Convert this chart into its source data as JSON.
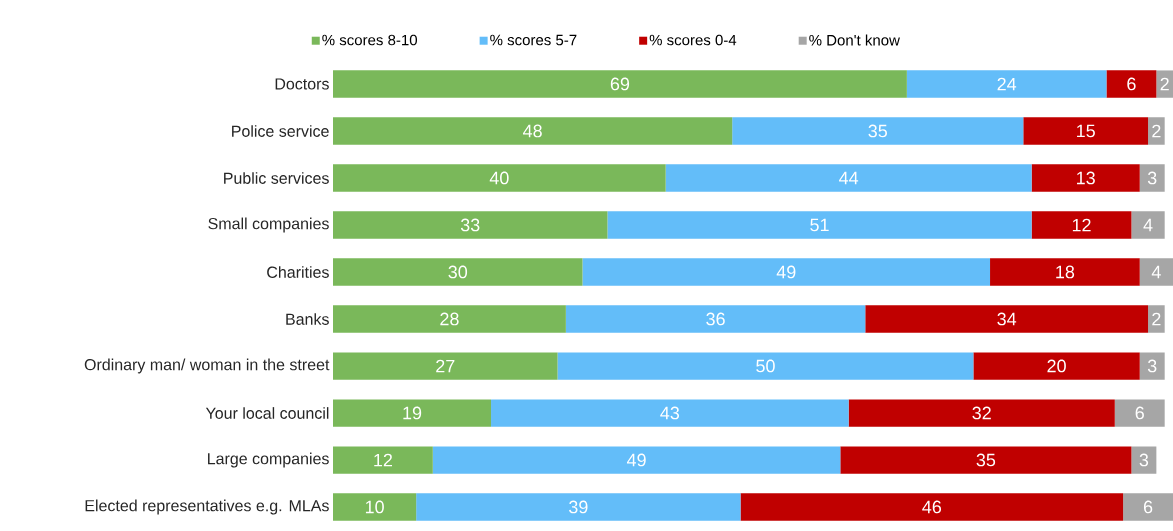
{
  "chart_data": {
    "type": "bar",
    "orientation": "horizontal",
    "stacked": true,
    "data_labels": true,
    "legend": "top",
    "categories": [
      "Doctors",
      "Police service",
      "Public services",
      "Small companies",
      "Charities",
      "Banks",
      "Ordinary man/ woman in the street",
      "Your local council",
      "Large companies",
      "Elected representatives e.g. MLAs"
    ],
    "series": [
      {
        "name": "% scores 8-10",
        "color": "#7ab85a",
        "values": [
          69,
          48,
          40,
          33,
          30,
          28,
          27,
          19,
          12,
          10
        ]
      },
      {
        "name": "% scores 5-7",
        "color": "#63bdf9",
        "values": [
          24,
          35,
          44,
          51,
          49,
          36,
          50,
          43,
          49,
          39
        ]
      },
      {
        "name": "% scores 0-4",
        "color": "#c00000",
        "values": [
          6,
          15,
          13,
          12,
          18,
          34,
          20,
          32,
          35,
          46
        ]
      },
      {
        "name": "% Don't know",
        "color": "#a6a6a6",
        "values": [
          2,
          2,
          3,
          4,
          4,
          2,
          3,
          6,
          3,
          6
        ]
      }
    ]
  }
}
